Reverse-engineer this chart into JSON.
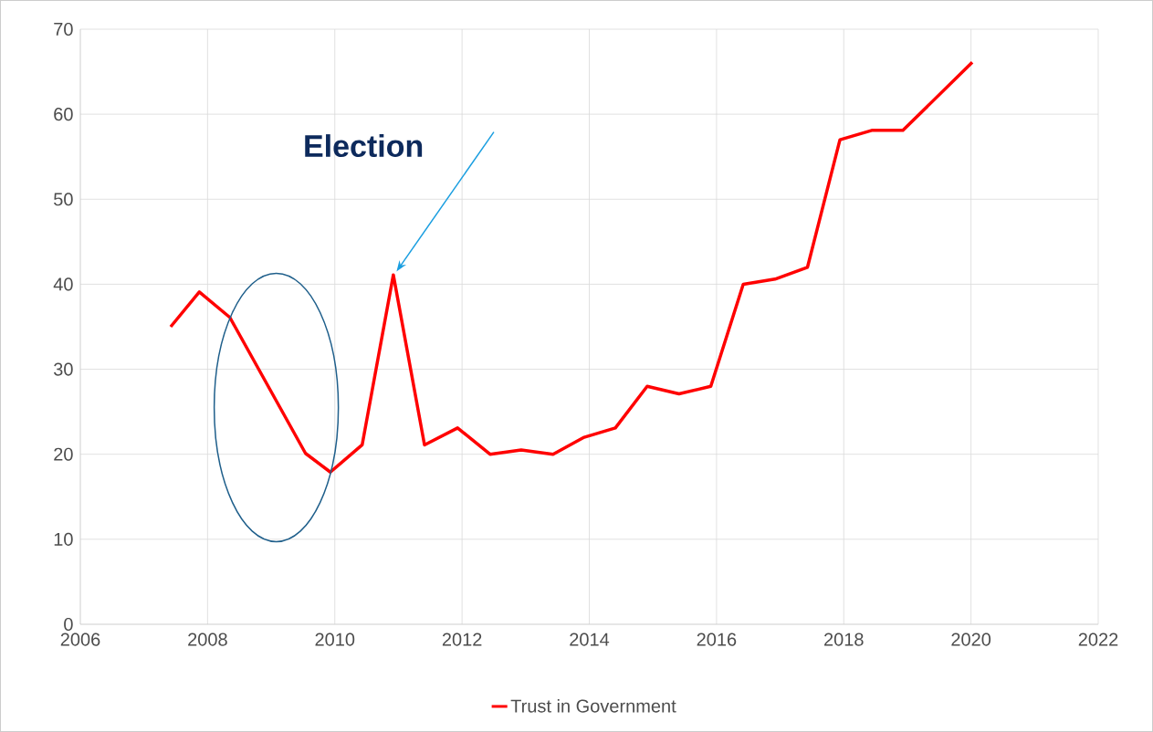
{
  "chart_data": {
    "type": "line",
    "x": [
      2007.42,
      2007.87,
      2008.35,
      2009.54,
      2009.93,
      2010.43,
      2010.92,
      2011.41,
      2011.93,
      2012.44,
      2012.93,
      2013.43,
      2013.92,
      2014.41,
      2014.91,
      2015.41,
      2015.91,
      2016.42,
      2016.92,
      2017.43,
      2017.94,
      2018.44,
      2018.93,
      2020.02
    ],
    "series": [
      {
        "name": "Trust in Government",
        "color": "#ff0000",
        "values": [
          35.0,
          39.1,
          36.1,
          20.1,
          17.9,
          21.1,
          41.1,
          21.1,
          23.1,
          20.0,
          20.5,
          20.0,
          22.0,
          23.1,
          28.0,
          27.1,
          28.0,
          40.0,
          40.6,
          42.0,
          57.0,
          58.1,
          58.1,
          66.1
        ]
      }
    ],
    "xlim": [
      2006,
      2022
    ],
    "xticks": [
      2006,
      2008,
      2010,
      2012,
      2014,
      2016,
      2018,
      2020,
      2022
    ],
    "ylim": [
      0,
      70
    ],
    "yticks": [
      0,
      10,
      20,
      30,
      40,
      50,
      60,
      70
    ],
    "grid": true,
    "legend": "bottom",
    "annotations": [
      "Election"
    ]
  }
}
